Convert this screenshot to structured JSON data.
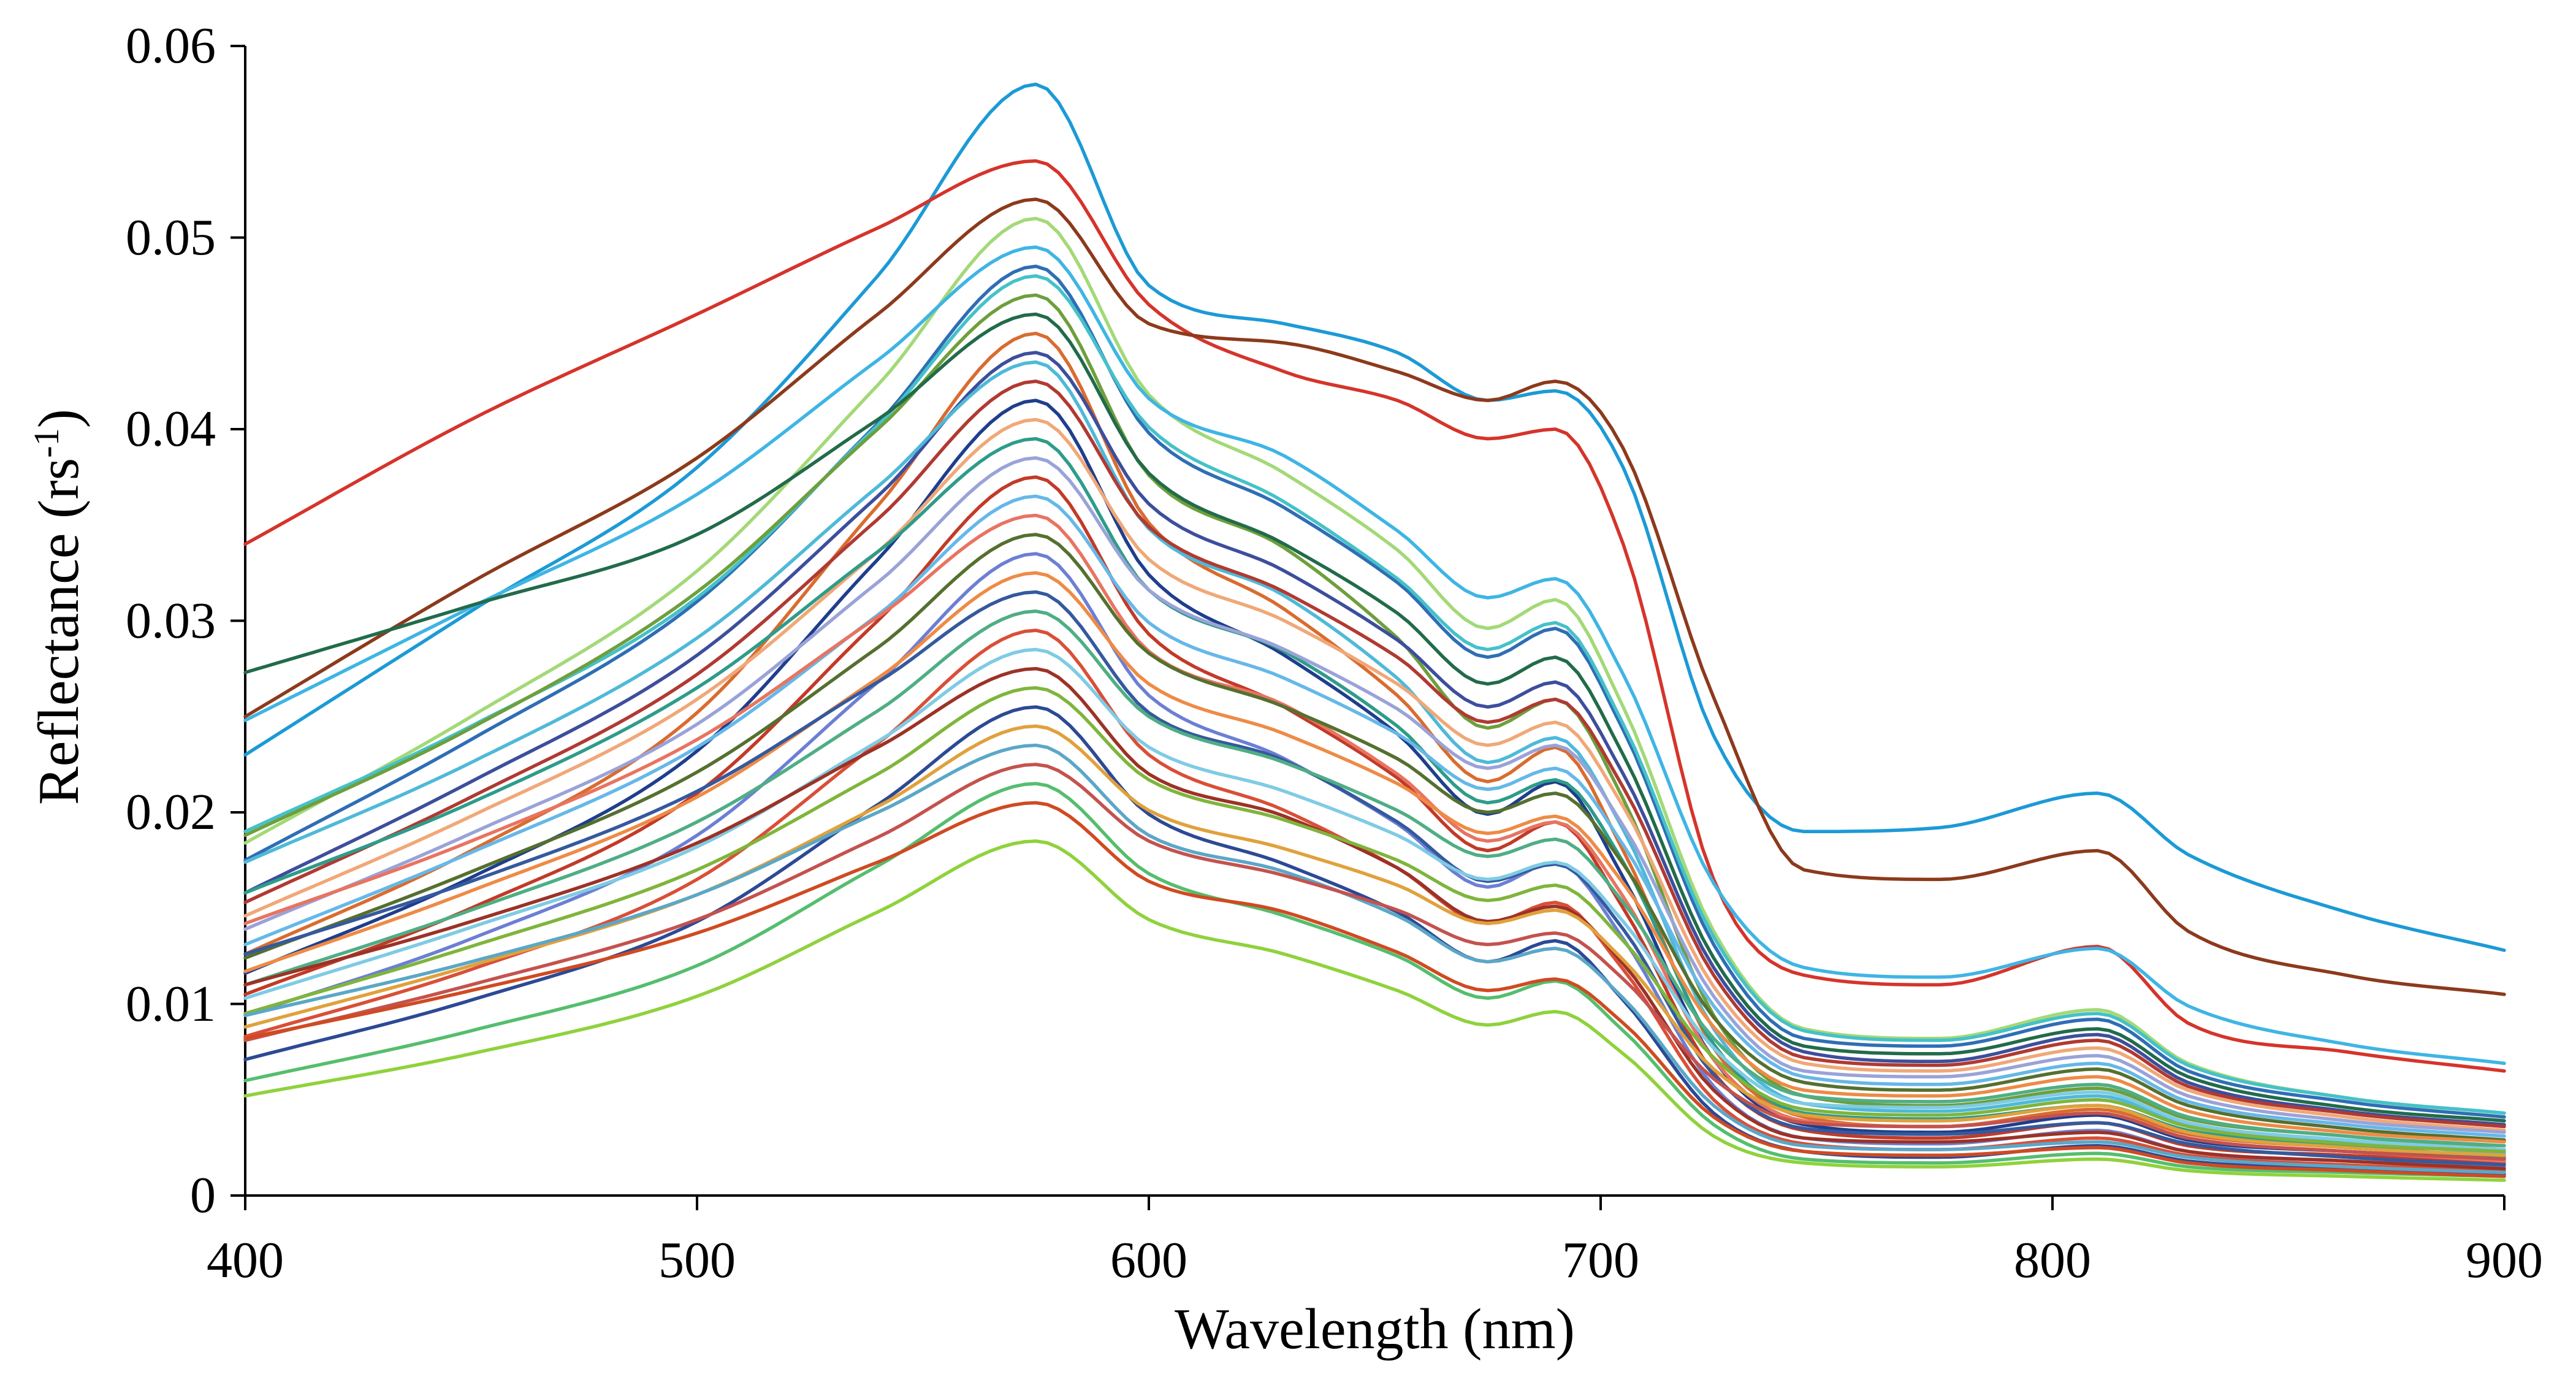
{
  "figure": {
    "background": "#ffffff",
    "axis_color": "#000000"
  },
  "chart_data": {
    "type": "line",
    "title": "",
    "xlabel": "Wavelength  (nm)",
    "ylabel": "Reflectance (rs⁻¹)",
    "ylabel_parts": {
      "prefix": "Reflectance  (rs",
      "sup": "-1",
      "suffix": ")"
    },
    "xlim": [
      400,
      900
    ],
    "ylim": [
      0,
      0.06
    ],
    "grid": false,
    "legend": "none",
    "x_ticks": [
      400,
      500,
      600,
      700,
      800,
      900
    ],
    "x_tick_labels": [
      "400",
      "500",
      "600",
      "700",
      "800",
      "900"
    ],
    "y_ticks": [
      0,
      0.01,
      0.02,
      0.03,
      0.04,
      0.05,
      0.06
    ],
    "y_tick_labels": [
      "0",
      "0.01",
      "0.02",
      "0.03",
      "0.04",
      "0.05",
      "0.06"
    ],
    "x": [
      400,
      450,
      500,
      540,
      575,
      600,
      630,
      655,
      675,
      690,
      705,
      725,
      745,
      775,
      810,
      830,
      865,
      900
    ],
    "series": [
      {
        "color": "#1C9AD6",
        "values": [
          0.023,
          0.0305,
          0.038,
          0.048,
          0.058,
          0.0475,
          0.0455,
          0.044,
          0.0415,
          0.042,
          0.038,
          0.024,
          0.019,
          0.0192,
          0.021,
          0.0178,
          0.0148,
          0.0128
        ]
      },
      {
        "color": "#D5342B",
        "values": [
          0.034,
          0.0405,
          0.046,
          0.0505,
          0.054,
          0.0465,
          0.043,
          0.0415,
          0.0395,
          0.04,
          0.034,
          0.0165,
          0.0115,
          0.011,
          0.013,
          0.009,
          0.0075,
          0.0065
        ]
      },
      {
        "color": "#8C3A1C",
        "values": [
          0.025,
          0.032,
          0.0385,
          0.046,
          0.052,
          0.0455,
          0.0445,
          0.043,
          0.0415,
          0.0425,
          0.039,
          0.026,
          0.017,
          0.0165,
          0.018,
          0.0138,
          0.0115,
          0.0105
        ]
      },
      {
        "color": "#A3D977",
        "values": [
          0.0184,
          0.025,
          0.0326,
          0.0423,
          0.051,
          0.0418,
          0.0377,
          0.0337,
          0.0296,
          0.0311,
          0.0255,
          0.0138,
          0.0087,
          0.0082,
          0.0097,
          0.0069,
          0.0051,
          0.0043
        ]
      },
      {
        "color": "#3FB5E4",
        "values": [
          0.0248,
          0.0307,
          0.0366,
          0.0436,
          0.0495,
          0.0416,
          0.0386,
          0.0347,
          0.0312,
          0.0322,
          0.0272,
          0.0163,
          0.0119,
          0.0114,
          0.0129,
          0.0099,
          0.0079,
          0.0069
        ]
      },
      {
        "color": "#2F6EB5",
        "values": [
          0.0175,
          0.0238,
          0.031,
          0.0403,
          0.0485,
          0.0398,
          0.0359,
          0.032,
          0.0281,
          0.0296,
          0.0243,
          0.0131,
          0.0082,
          0.0078,
          0.0092,
          0.0065,
          0.0049,
          0.0041
        ]
      },
      {
        "color": "#45C1C9",
        "values": [
          0.019,
          0.0245,
          0.0312,
          0.0402,
          0.048,
          0.0401,
          0.0362,
          0.0322,
          0.0285,
          0.0299,
          0.0246,
          0.0135,
          0.0086,
          0.0081,
          0.0095,
          0.0068,
          0.0051,
          0.0043
        ]
      },
      {
        "color": "#6E9F3C",
        "values": [
          0.0188,
          0.0244,
          0.0315,
          0.04,
          0.047,
          0.0376,
          0.0338,
          0.0291,
          0.0244,
          0.0259,
          0.0207,
          0.0094,
          0.0052,
          0.0047,
          0.0056,
          0.004,
          0.0031,
          0.0024
        ]
      },
      {
        "color": "#226B4A",
        "values": [
          0.0273,
          0.0308,
          0.0345,
          0.0405,
          0.046,
          0.0377,
          0.034,
          0.0304,
          0.0267,
          0.0281,
          0.023,
          0.0124,
          0.0078,
          0.0074,
          0.0087,
          0.0062,
          0.0046,
          0.0039
        ]
      },
      {
        "color": "#D96C2F",
        "values": [
          0.0126,
          0.018,
          0.0252,
          0.036,
          0.045,
          0.0351,
          0.0306,
          0.0261,
          0.0216,
          0.0234,
          0.018,
          0.0077,
          0.0041,
          0.0036,
          0.0045,
          0.0032,
          0.0025,
          0.002
        ]
      },
      {
        "color": "#3D4E9C",
        "values": [
          0.0158,
          0.0216,
          0.0282,
          0.0365,
          0.044,
          0.0361,
          0.0326,
          0.029,
          0.0255,
          0.0268,
          0.022,
          0.0119,
          0.0075,
          0.007,
          0.0084,
          0.0059,
          0.0044,
          0.0037
        ]
      },
      {
        "color": "#4FB9D8",
        "values": [
          0.0174,
          0.0226,
          0.0291,
          0.037,
          0.0435,
          0.0348,
          0.0313,
          0.027,
          0.0226,
          0.0239,
          0.0191,
          0.0087,
          0.0048,
          0.0044,
          0.0052,
          0.0037,
          0.0028,
          0.0022
        ]
      },
      {
        "color": "#B03A32",
        "values": [
          0.0153,
          0.0208,
          0.0272,
          0.0353,
          0.0425,
          0.0349,
          0.0315,
          0.0281,
          0.0247,
          0.0259,
          0.0213,
          0.0115,
          0.0072,
          0.0068,
          0.0081,
          0.0057,
          0.0043,
          0.0036
        ]
      },
      {
        "color": "#1F3E8C",
        "values": [
          0.0116,
          0.0166,
          0.0232,
          0.0332,
          0.0415,
          0.0324,
          0.0282,
          0.0241,
          0.0199,
          0.0216,
          0.0166,
          0.0071,
          0.0037,
          0.0033,
          0.0042,
          0.0029,
          0.0023,
          0.0019
        ]
      },
      {
        "color": "#F0A878",
        "values": [
          0.0146,
          0.0198,
          0.0259,
          0.0336,
          0.0405,
          0.0332,
          0.03,
          0.0267,
          0.0235,
          0.0247,
          0.0203,
          0.0109,
          0.0069,
          0.0065,
          0.0077,
          0.0055,
          0.0041,
          0.0034
        ]
      },
      {
        "color": "#2E9C8A",
        "values": [
          0.0158,
          0.0205,
          0.0265,
          0.0336,
          0.0395,
          0.0316,
          0.0284,
          0.0245,
          0.0205,
          0.0217,
          0.0174,
          0.0079,
          0.0043,
          0.004,
          0.0047,
          0.0034,
          0.0026,
          0.002
        ]
      },
      {
        "color": "#9AA3D8",
        "values": [
          0.0139,
          0.0189,
          0.0246,
          0.032,
          0.0385,
          0.0316,
          0.0285,
          0.0254,
          0.0223,
          0.0235,
          0.0193,
          0.0104,
          0.0065,
          0.0062,
          0.0073,
          0.0052,
          0.0039,
          0.0033
        ]
      },
      {
        "color": "#C23A28",
        "values": [
          0.0105,
          0.015,
          0.021,
          0.03,
          0.0375,
          0.0293,
          0.0255,
          0.0218,
          0.018,
          0.0195,
          0.015,
          0.0064,
          0.0034,
          0.003,
          0.0038,
          0.0026,
          0.0021,
          0.0017
        ]
      },
      {
        "color": "#66B8E8",
        "values": [
          0.0131,
          0.0179,
          0.0234,
          0.0303,
          0.0365,
          0.0299,
          0.027,
          0.0241,
          0.0212,
          0.0223,
          0.0183,
          0.0099,
          0.0062,
          0.0058,
          0.0069,
          0.0049,
          0.0037,
          0.0031
        ]
      },
      {
        "color": "#E87461",
        "values": [
          0.0142,
          0.0185,
          0.0238,
          0.0302,
          0.0355,
          0.0284,
          0.0256,
          0.022,
          0.0185,
          0.0195,
          0.0156,
          0.0071,
          0.0039,
          0.0036,
          0.0043,
          0.003,
          0.0023,
          0.0018
        ]
      },
      {
        "color": "#55702F",
        "values": [
          0.0124,
          0.0169,
          0.0221,
          0.0286,
          0.0345,
          0.0283,
          0.0255,
          0.0228,
          0.02,
          0.021,
          0.0173,
          0.0093,
          0.0059,
          0.0055,
          0.0066,
          0.0047,
          0.0035,
          0.0029
        ]
      },
      {
        "color": "#6C7FD4",
        "values": [
          0.0094,
          0.0134,
          0.0188,
          0.0268,
          0.0335,
          0.0261,
          0.0228,
          0.0194,
          0.0161,
          0.0174,
          0.0134,
          0.0057,
          0.003,
          0.0027,
          0.0034,
          0.0023,
          0.0018,
          0.0015
        ]
      },
      {
        "color": "#EE8B46",
        "values": [
          0.0117,
          0.0159,
          0.0208,
          0.027,
          0.0325,
          0.0267,
          0.0241,
          0.0215,
          0.0189,
          0.0198,
          0.0163,
          0.0088,
          0.0055,
          0.0052,
          0.0062,
          0.0044,
          0.0033,
          0.0028
        ]
      },
      {
        "color": "#35599E",
        "values": [
          0.0126,
          0.0164,
          0.0211,
          0.0268,
          0.0315,
          0.0252,
          0.0227,
          0.0195,
          0.0164,
          0.0173,
          0.0139,
          0.0063,
          0.0035,
          0.0032,
          0.0038,
          0.0027,
          0.002,
          0.0016
        ]
      },
      {
        "color": "#4FAE84",
        "values": [
          0.011,
          0.0149,
          0.0195,
          0.0253,
          0.0305,
          0.025,
          0.0226,
          0.0201,
          0.0177,
          0.0186,
          0.0153,
          0.0082,
          0.0052,
          0.0049,
          0.0058,
          0.0041,
          0.0031,
          0.0026
        ]
      },
      {
        "color": "#D94F38",
        "values": [
          0.0083,
          0.0118,
          0.0165,
          0.0236,
          0.0295,
          0.023,
          0.0201,
          0.0171,
          0.0142,
          0.0153,
          0.0118,
          0.005,
          0.0027,
          0.0024,
          0.003,
          0.0021,
          0.0016,
          0.0013
        ]
      },
      {
        "color": "#7FCBE4",
        "values": [
          0.0103,
          0.014,
          0.0182,
          0.0237,
          0.0285,
          0.0234,
          0.0211,
          0.0188,
          0.0165,
          0.0174,
          0.0143,
          0.0077,
          0.0048,
          0.0046,
          0.0054,
          0.0038,
          0.0029,
          0.0024
        ]
      },
      {
        "color": "#9C3226",
        "values": [
          0.011,
          0.0143,
          0.0184,
          0.0234,
          0.0275,
          0.022,
          0.0198,
          0.0171,
          0.0143,
          0.0151,
          0.0121,
          0.0055,
          0.003,
          0.0028,
          0.0033,
          0.0023,
          0.0018,
          0.0014
        ]
      },
      {
        "color": "#7FB53C",
        "values": [
          0.0095,
          0.013,
          0.017,
          0.022,
          0.0265,
          0.0217,
          0.0196,
          0.0175,
          0.0154,
          0.0162,
          0.0133,
          0.0072,
          0.0045,
          0.0042,
          0.005,
          0.0036,
          0.0027,
          0.0023
        ]
      },
      {
        "color": "#2C4A94",
        "values": [
          0.0071,
          0.0102,
          0.0143,
          0.0204,
          0.0255,
          0.0199,
          0.0173,
          0.0148,
          0.0122,
          0.0133,
          0.0102,
          0.0043,
          0.0023,
          0.002,
          0.0026,
          0.0018,
          0.0014,
          0.0011
        ]
      },
      {
        "color": "#E0A13C",
        "values": [
          0.0088,
          0.012,
          0.0157,
          0.0203,
          0.0245,
          0.0201,
          0.0181,
          0.0162,
          0.0142,
          0.0149,
          0.0123,
          0.0066,
          0.0042,
          0.0039,
          0.0047,
          0.0033,
          0.0025,
          0.0021
        ]
      },
      {
        "color": "#5BA7C7",
        "values": [
          0.0094,
          0.0122,
          0.0157,
          0.02,
          0.0235,
          0.0188,
          0.0169,
          0.0146,
          0.0122,
          0.0129,
          0.0103,
          0.0047,
          0.0026,
          0.0024,
          0.0028,
          0.002,
          0.0015,
          0.0012
        ]
      },
      {
        "color": "#C4524E",
        "values": [
          0.0081,
          0.011,
          0.0144,
          0.0187,
          0.0225,
          0.0185,
          0.0167,
          0.0149,
          0.0131,
          0.0137,
          0.0113,
          0.0061,
          0.0038,
          0.0036,
          0.0043,
          0.003,
          0.0023,
          0.0019
        ]
      },
      {
        "color": "#55BE6E",
        "values": [
          0.006,
          0.0086,
          0.012,
          0.0172,
          0.0215,
          0.0168,
          0.0146,
          0.0125,
          0.0103,
          0.0112,
          0.0086,
          0.0037,
          0.0019,
          0.0017,
          0.0022,
          0.0015,
          0.0012,
          0.001
        ]
      },
      {
        "color": "#D04A22",
        "values": [
          0.0082,
          0.0107,
          0.0137,
          0.0174,
          0.0205,
          0.0164,
          0.0148,
          0.0127,
          0.0107,
          0.0113,
          0.009,
          0.0041,
          0.0023,
          0.0021,
          0.0025,
          0.0017,
          0.0013,
          0.001
        ]
      },
      {
        "color": "#8FD23C",
        "values": [
          0.0052,
          0.0074,
          0.0104,
          0.0148,
          0.0185,
          0.0144,
          0.0126,
          0.0107,
          0.0089,
          0.0096,
          0.0074,
          0.0031,
          0.0017,
          0.0015,
          0.0019,
          0.0013,
          0.001,
          0.0008
        ]
      }
    ]
  }
}
